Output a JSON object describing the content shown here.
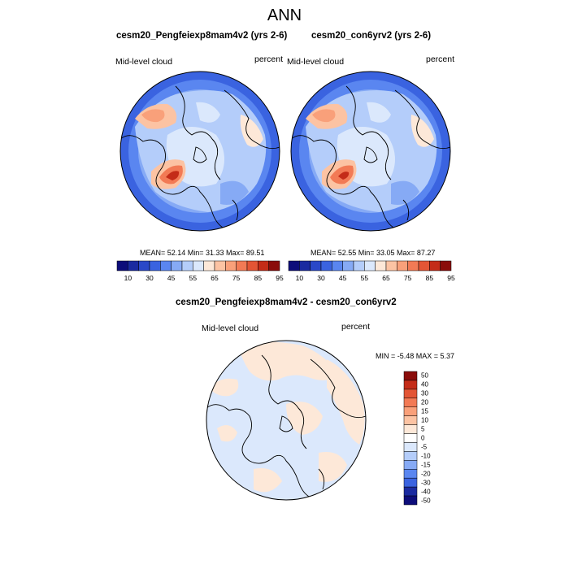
{
  "title": "ANN",
  "panels": [
    {
      "title": "cesm20_Pengfeiexp8mam4v2 (yrs 2-6)",
      "left_label": "Mid-level cloud",
      "right_label": "percent",
      "stats": "MEAN=  52.14  Min=  31.33  Max=  89.51"
    },
    {
      "title": "cesm20_con6yrv2 (yrs 2-6)",
      "left_label": "Mid-level cloud",
      "right_label": "percent",
      "stats": "MEAN=  52.55  Min=  33.05  Max=  87.27"
    }
  ],
  "colorbar_abs": {
    "colors": [
      "#0d0d7a",
      "#1a2aa0",
      "#2a48c8",
      "#3a63e0",
      "#5a86f0",
      "#86aaf5",
      "#b4cdfa",
      "#dbe8fc",
      "#fde8d8",
      "#fcc3a3",
      "#f9a07a",
      "#f27a55",
      "#e35535",
      "#c42c18",
      "#8a0c0a"
    ],
    "tick_labels": [
      "10",
      "30",
      "45",
      "55",
      "65",
      "75",
      "85",
      "95"
    ]
  },
  "difference": {
    "title": "cesm20_Pengfeiexp8mam4v2 - cesm20_con6yrv2",
    "left_label": "Mid-level cloud",
    "right_label": "percent",
    "stats": "MIN =  -5.48 MAX =   5.37"
  },
  "colorbar_diff": {
    "colors": [
      "#8a0c0a",
      "#c42c18",
      "#e35535",
      "#f27a55",
      "#f9a07a",
      "#fcc3a3",
      "#fde8d8",
      "#ffffff",
      "#dbe8fc",
      "#b4cdfa",
      "#86aaf5",
      "#5a86f0",
      "#3a63e0",
      "#1a2aa0",
      "#0d0d7a"
    ],
    "labels": [
      "50",
      "40",
      "30",
      "20",
      "15",
      "10",
      "5",
      "0",
      "-5",
      "-10",
      "-15",
      "-20",
      "-30",
      "-40",
      "-50"
    ]
  },
  "colors": {
    "ocean_base": "#b4cdfa",
    "outer_ring": "#3a63e0",
    "diff_base": "#dbe8fc",
    "diff_positive": "#fde8d8"
  }
}
